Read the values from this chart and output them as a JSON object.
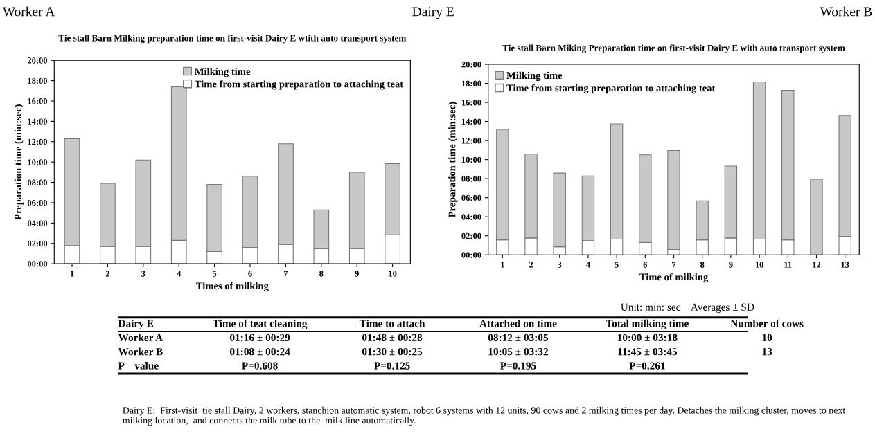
{
  "chart_data": [
    {
      "type": "bar",
      "stacked": true,
      "title": "Tie stall Barn Milking preparation time on first-visit Dairy E wtith auto transport system",
      "xlabel": "Times of milking",
      "ylabel": "Preparation time (min:sec)",
      "categories": [
        "1",
        "2",
        "3",
        "4",
        "5",
        "6",
        "7",
        "8",
        "9",
        "10"
      ],
      "series": [
        {
          "name": "Time from starting preparation to attaching teat",
          "color": "#ffffff",
          "values": [
            1.8,
            1.7,
            1.7,
            2.3,
            1.2,
            1.6,
            1.9,
            1.5,
            1.5,
            2.85
          ]
        },
        {
          "name": "Milking time",
          "color": "#c8c8c8",
          "values": [
            10.5,
            6.2,
            8.5,
            15.1,
            6.6,
            7.0,
            9.9,
            3.8,
            7.5,
            7.0
          ]
        }
      ],
      "ylim": [
        0,
        20
      ],
      "yticks": [
        {
          "value": 0,
          "label": "00:00"
        },
        {
          "value": 2,
          "label": "02:00"
        },
        {
          "value": 4,
          "label": "04:00"
        },
        {
          "value": 6,
          "label": "06:00"
        },
        {
          "value": 8,
          "label": "08:00"
        },
        {
          "value": 10,
          "label": "10:00"
        },
        {
          "value": 12,
          "label": "12:00"
        },
        {
          "value": 14,
          "label": "14:00"
        },
        {
          "value": 16,
          "label": "16:00"
        },
        {
          "value": 18,
          "label": "18:00"
        },
        {
          "value": 20,
          "label": "20:00"
        }
      ],
      "grid": false,
      "legend": "top right",
      "annotations": [
        "Worker A",
        "Dairy E"
      ]
    },
    {
      "type": "bar",
      "stacked": true,
      "title": "Tie stall Barn Miking Preparation time on first-visit Dairy E with auto transport system",
      "xlabel": "Time of milking",
      "ylabel": "Preparation time (min:sec)",
      "categories": [
        "1",
        "2",
        "3",
        "4",
        "5",
        "6",
        "7",
        "8",
        "9",
        "10",
        "11",
        "12",
        "13"
      ],
      "series": [
        {
          "name": "Time from starting preparation to attaching teat",
          "color": "#ffffff",
          "values": [
            1.57,
            1.77,
            0.84,
            1.48,
            1.65,
            1.3,
            0.55,
            1.57,
            1.77,
            1.65,
            1.57,
            0,
            1.94
          ]
        },
        {
          "name": "Milking time",
          "color": "#c8c8c8",
          "values": [
            11.6,
            8.8,
            7.74,
            6.8,
            12.1,
            9.2,
            10.4,
            4.1,
            7.55,
            16.5,
            15.7,
            7.94,
            12.7
          ]
        }
      ],
      "ylim": [
        0,
        20
      ],
      "yticks": [
        {
          "value": 0,
          "label": "00:00"
        },
        {
          "value": 2,
          "label": "02:00"
        },
        {
          "value": 4,
          "label": "04:00"
        },
        {
          "value": 6,
          "label": "06:00"
        },
        {
          "value": 8,
          "label": "08:00"
        },
        {
          "value": 10,
          "label": "10:00"
        },
        {
          "value": 12,
          "label": "12:00"
        },
        {
          "value": 14,
          "label": "14:00"
        },
        {
          "value": 16,
          "label": "16:00"
        },
        {
          "value": 18,
          "label": "18:00"
        },
        {
          "value": 20,
          "label": "20:00"
        }
      ],
      "grid": false,
      "legend": "top left",
      "annotations": [
        "Worker B"
      ]
    },
    {
      "type": "other",
      "categories": [
        "Dairy E",
        "Time of teat cleaning",
        "Time to attach",
        "Attached on time",
        "Total milking time",
        "Number of cows"
      ],
      "y_categories": [
        "Worker A",
        "Worker B",
        "P    value"
      ],
      "cell_labels": [
        [
          "01:16 ± 00:29",
          "01:48 ± 00:28",
          "08:12 ± 03:05",
          "10:00 ± 03:18",
          "10"
        ],
        [
          "01:08 ± 00:24",
          "01:30 ± 00:25",
          "10:05 ± 03:32",
          "11:45 ± 03:45",
          "13"
        ],
        [
          "P=0.608",
          "P=0.125",
          "P=0.195",
          "P=0.261",
          null
        ]
      ],
      "annotations": [
        "Unit: min: sec    Averages ± SD",
        "Dairy E:  First-visit  tie stall Dairy, 2 workers, stanchion automatic system, robot 6 systems with 12 units, 90 cows and 2 milking times per day. Detaches the milking cluster, moves to next milking location,  and connects the milk tube to the  milk line automatically."
      ]
    }
  ]
}
